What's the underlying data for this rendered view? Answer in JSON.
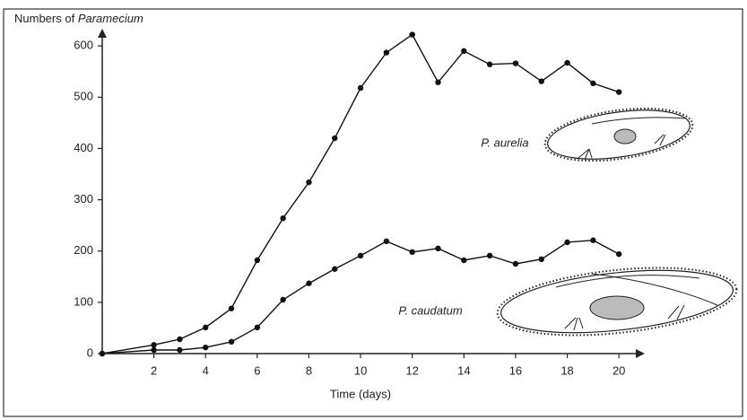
{
  "chart_data": {
    "type": "line",
    "y_label": [
      {
        "text": "Numbers of"
      },
      {
        "text": "Paramecium",
        "italic": true
      }
    ],
    "x_label": "Time (days)",
    "x": [
      0,
      2,
      3,
      4,
      5,
      6,
      7,
      8,
      9,
      10,
      11,
      12,
      13,
      14,
      15,
      16,
      17,
      18,
      19,
      20
    ],
    "series": [
      {
        "name": "P. aurelia",
        "color": "#111111",
        "values": [
          0,
          17,
          28,
          51,
          88,
          182,
          264,
          334,
          420,
          518,
          587,
          622,
          529,
          590,
          564,
          566,
          531,
          567,
          527,
          510
        ]
      },
      {
        "name": "P. caudatum",
        "color": "#111111",
        "values": [
          0,
          7,
          7,
          12,
          23,
          51,
          105,
          137,
          165,
          191,
          219,
          198,
          205,
          182,
          191,
          175,
          184,
          217,
          221,
          194
        ]
      }
    ],
    "xlim": [
      0,
      21
    ],
    "ylim": [
      0,
      630
    ],
    "xticks": [
      2,
      4,
      6,
      8,
      10,
      12,
      14,
      16,
      18,
      20
    ],
    "yticks": [
      0,
      100,
      200,
      300,
      400,
      500,
      600
    ],
    "grid": false
  }
}
